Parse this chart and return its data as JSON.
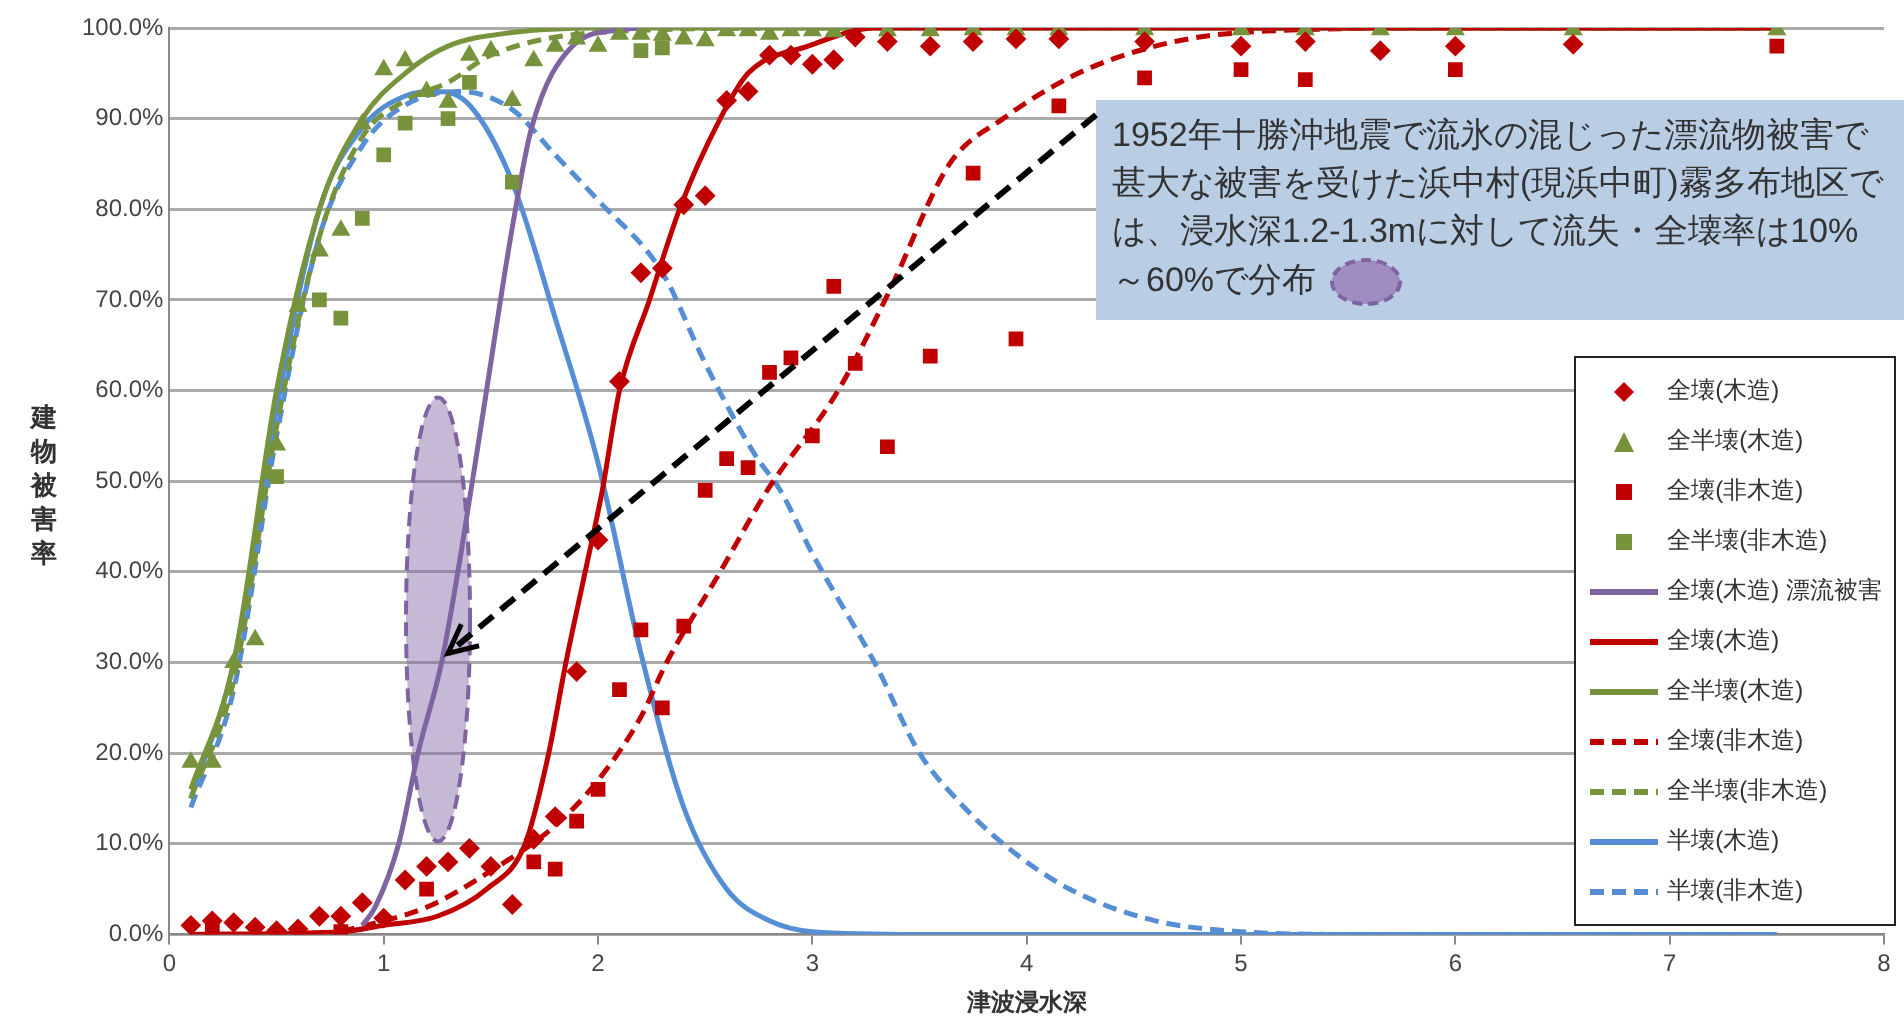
{
  "chart_data": {
    "type": "line",
    "xlabel": "津波浸水深",
    "ylabel": "建物被害率",
    "xlim": [
      0,
      8
    ],
    "xticks": [
      0,
      1,
      2,
      3,
      4,
      5,
      6,
      7,
      8
    ],
    "ylim": [
      0,
      100
    ],
    "yticks": [
      {
        "value": 0,
        "label": "0.0%"
      },
      {
        "value": 10,
        "label": "10.0%"
      },
      {
        "value": 20,
        "label": "20.0%"
      },
      {
        "value": 30,
        "label": "30.0%"
      },
      {
        "value": 40,
        "label": "40.0%"
      },
      {
        "value": 50,
        "label": "50.0%"
      },
      {
        "value": 60,
        "label": "60.0%"
      },
      {
        "value": 70,
        "label": "70.0%"
      },
      {
        "value": 80,
        "label": "80.0%"
      },
      {
        "value": 90,
        "label": "90.0%"
      },
      {
        "value": 100,
        "label": "100.0%"
      }
    ],
    "grid": "y",
    "legend": "right",
    "annotations": [
      {
        "text": "1952年十勝沖地震で流氷の混じった漂流物被害で甚大な被害を受けた浜中村(現浜中町)霧多布地区では、浸水深1.2-1.3mに対して流失・全壊率は10%～60%で分布",
        "x": 1.3,
        "y": 31
      }
    ],
    "series": [
      {
        "name": "全壊(木造)",
        "type": "scatter",
        "marker": "diamond",
        "color": "#c00000",
        "x": [
          0.1,
          0.2,
          0.3,
          0.4,
          0.5,
          0.6,
          0.7,
          0.8,
          0.9,
          1.0,
          1.1,
          1.2,
          1.3,
          1.4,
          1.5,
          1.6,
          1.7,
          1.8,
          1.9,
          2.0,
          2.1,
          2.2,
          2.3,
          2.4,
          2.5,
          2.6,
          2.7,
          2.8,
          2.9,
          3.0,
          3.1,
          3.2,
          3.35,
          3.55,
          3.75,
          3.95,
          4.15,
          4.55,
          5.0,
          5.3,
          5.65,
          6.0,
          6.55
        ],
        "values": [
          1,
          1.5,
          1.3,
          0.8,
          0.4,
          0.6,
          2,
          2,
          3.5,
          1.8,
          6,
          7.5,
          8,
          9.5,
          7.5,
          3.3,
          10.5,
          13,
          29,
          43.5,
          61,
          73,
          73.5,
          80.5,
          81.5,
          92,
          93,
          97,
          97,
          96,
          96.5,
          99,
          98.5,
          98,
          98.5,
          98.8,
          98.8,
          98.5,
          98,
          98.5,
          97.5,
          98,
          98.2
        ]
      },
      {
        "name": "全半壊(木造)",
        "type": "scatter",
        "marker": "triangle",
        "color": "#77933c",
        "x": [
          0.1,
          0.2,
          0.3,
          0.4,
          0.5,
          0.6,
          0.7,
          0.8,
          0.9,
          1.0,
          1.1,
          1.2,
          1.3,
          1.4,
          1.5,
          1.6,
          1.7,
          1.8,
          1.9,
          2.0,
          2.1,
          2.2,
          2.3,
          2.4,
          2.5,
          2.6,
          2.7,
          2.8,
          2.9,
          3.0,
          3.1,
          3.35,
          3.55,
          3.75,
          3.95,
          4.15,
          4.55,
          5.0,
          5.3,
          5.65,
          6.0,
          6.55,
          7.5
        ],
        "values": [
          19,
          19,
          30,
          32.5,
          54,
          69.3,
          75.4,
          77.7,
          89.4,
          95.4,
          96.4,
          93,
          91.8,
          97,
          97.5,
          92,
          96.4,
          98,
          98.8,
          98,
          99.3,
          99.3,
          99.2,
          98.8,
          98.6,
          99.7,
          99.7,
          99.3,
          99.7,
          99.7,
          99.6,
          99.7,
          99.7,
          99.8,
          99.8,
          99.8,
          99.8,
          99.8,
          99.8,
          99.8,
          99.8,
          99.8,
          99.8
        ]
      },
      {
        "name": "全壊(非木造)",
        "type": "scatter",
        "marker": "square",
        "color": "#c00000",
        "x": [
          0.2,
          0.8,
          1.2,
          1.7,
          1.8,
          1.9,
          2.0,
          2.1,
          2.2,
          2.3,
          2.4,
          2.5,
          2.6,
          2.7,
          2.8,
          2.9,
          3.0,
          3.1,
          3.2,
          3.35,
          3.55,
          3.75,
          3.95,
          4.15,
          4.55,
          5.0,
          5.3,
          6.0,
          7.5
        ],
        "values": [
          0.5,
          0.3,
          5,
          8,
          7.2,
          12.5,
          16,
          27,
          33.6,
          25,
          34,
          49,
          52.5,
          51.5,
          62,
          63.6,
          55,
          71.5,
          63,
          53.8,
          63.8,
          84,
          65.7,
          91.4,
          94.5,
          95.4,
          94.3,
          95.4,
          98
        ]
      },
      {
        "name": "全半壊(非木造)",
        "type": "scatter",
        "marker": "square",
        "color": "#77933c",
        "x": [
          0.5,
          0.7,
          0.8,
          0.9,
          1.0,
          1.1,
          1.3,
          1.4,
          1.6,
          2.2,
          2.3
        ],
        "values": [
          50.5,
          70,
          68,
          79,
          86,
          89.5,
          90,
          94,
          83,
          97.5,
          97.8
        ]
      },
      {
        "name": "全壊(木造) 漂流被害",
        "marker": "none",
        "line_style": "solid",
        "color": "#8064a2",
        "x": [
          0.9,
          0.96,
          1.07,
          1.16,
          1.27,
          1.36,
          1.46,
          1.6,
          1.69,
          1.88,
          2.1,
          2.2
        ],
        "values": [
          1,
          3,
          10,
          20,
          30,
          42,
          57,
          78,
          89,
          98,
          99.8,
          100
        ]
      },
      {
        "name": "全壊(木造)",
        "marker": "none",
        "line_style": "solid",
        "color": "#c00000",
        "x": [
          0.1,
          0.8,
          1.0,
          1.25,
          1.48,
          1.66,
          1.77,
          1.85,
          1.94,
          2.02,
          2.1,
          2.24,
          2.38,
          2.57,
          2.7,
          2.98,
          3.3,
          7.5
        ],
        "values": [
          0,
          0.3,
          1,
          2,
          5,
          10,
          20,
          30,
          40,
          49,
          60,
          70,
          80,
          90,
          95,
          98,
          100,
          100
        ]
      },
      {
        "name": "全半壊(木造)",
        "marker": "none",
        "line_style": "solid",
        "color": "#77933c",
        "x": [
          0.1,
          0.3,
          0.5,
          0.7,
          0.9,
          1.1,
          1.3,
          1.6,
          2.0,
          7.5
        ],
        "values": [
          16,
          30,
          60,
          80,
          90,
          95,
          98,
          99.5,
          100,
          100
        ]
      },
      {
        "name": "全壊(非木造)",
        "marker": "none",
        "line_style": "dashed",
        "color": "#c00000",
        "x": [
          0.8,
          1.2,
          1.5,
          1.8,
          2.0,
          2.2,
          2.32,
          2.57,
          2.79,
          3.12,
          3.36,
          3.64,
          3.89,
          4.24,
          4.6,
          5.0,
          6.0,
          7.5
        ],
        "values": [
          0.3,
          3,
          7,
          12,
          17,
          24,
          30,
          40,
          49,
          60,
          71,
          85,
          90,
          95,
          98,
          99.5,
          100,
          100
        ]
      },
      {
        "name": "全半壊(非木造)",
        "marker": "none",
        "line_style": "dashed",
        "color": "#77933c",
        "x": [
          0.1,
          0.3,
          0.5,
          0.7,
          0.9,
          1.1,
          1.3,
          1.5,
          2.0,
          3.0,
          7.5
        ],
        "values": [
          15,
          28,
          56,
          77,
          88,
          92,
          94,
          97,
          99.5,
          100,
          100
        ]
      },
      {
        "name": "半壊(木造)",
        "marker": "none",
        "line_style": "solid",
        "color": "#558ed5",
        "x": [
          0.1,
          0.3,
          0.5,
          0.7,
          0.9,
          1.1,
          1.25,
          1.4,
          1.6,
          1.8,
          2.0,
          2.2,
          2.4,
          2.6,
          2.8,
          3.0,
          3.5,
          7.5
        ],
        "values": [
          15,
          30,
          58,
          80,
          89,
          92.5,
          93,
          91.5,
          83,
          68,
          52,
          31,
          14,
          5,
          1.5,
          0.3,
          0,
          0
        ]
      },
      {
        "name": "半壊(非木造)",
        "marker": "none",
        "line_style": "dashed",
        "color": "#558ed5",
        "x": [
          0.1,
          0.3,
          0.5,
          0.7,
          0.9,
          1.1,
          1.35,
          1.6,
          1.8,
          2.0,
          2.3,
          2.5,
          2.73,
          2.85,
          3.0,
          3.29,
          3.5,
          3.67,
          3.89,
          4.2,
          4.6,
          5.0,
          5.5,
          7.5
        ],
        "values": [
          14,
          27,
          55,
          77,
          87,
          91.5,
          93,
          91,
          86,
          81,
          73,
          63,
          53,
          49,
          42,
          30,
          20,
          15,
          10,
          5,
          1.5,
          0.3,
          0,
          0
        ]
      }
    ]
  }
}
